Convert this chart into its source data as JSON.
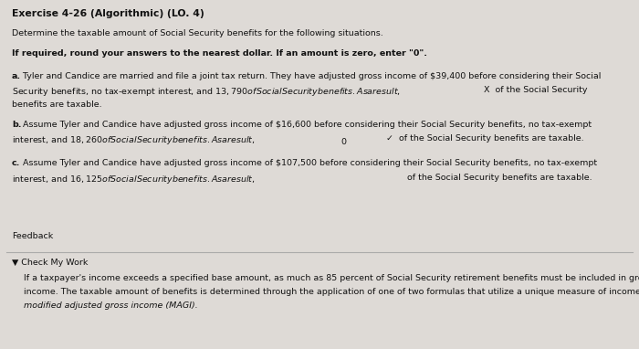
{
  "title": "Exercise 4-26 (Algorithmic) (LO. 4)",
  "subtitle": "Determine the taxable amount of Social Security benefits for the following situations.",
  "instruction": "If required, round your answers to the nearest dollar. If an amount is zero, enter \"0\".",
  "a_label": "a.",
  "a_line1": " Tyler and Candice are married and file a joint tax return. They have adjusted gross income of $39,400 before considering their Social",
  "a_line2": "Security benefits, no tax-exempt interest, and $13,790 of Social Security benefits. As a result, $",
  "a_after_box": " X  of the Social Security",
  "a_line3": "benefits are taxable.",
  "b_label": "b.",
  "b_line1": " Assume Tyler and Candice have adjusted gross income of $16,600 before considering their Social Security benefits, no tax-exempt",
  "b_line2": "interest, and $18,260 of Social Security benefits. As a result, $",
  "b_box_val": "0",
  "b_after_box": " ✓  of the Social Security benefits are taxable.",
  "c_label": "c.",
  "c_line1": " Assume Tyler and Candice have adjusted gross income of $107,500 before considering their Social Security benefits, no tax-exempt",
  "c_line2": "interest, and $16,125 of Social Security benefits. As a result, $",
  "c_after_box": " of the Social Security benefits are taxable.",
  "feedback_header": "Feedback",
  "check_label": "▼ Check My Work",
  "fb1": "If a taxpayer's income exceeds a specified base amount, as much as 85 percent of Social Security retirement benefits must be included in gross",
  "fb2": "income. The taxable amount of benefits is determined through the application of one of two formulas that utilize a unique measure of income—",
  "fb3": "modified adjusted gross income (MAGI).",
  "bg_main": "#dedad6",
  "bg_upper": "#e8e5e1",
  "bg_feedback_header": "#c8c5c1",
  "bg_feedback_body": "#d4d0cc",
  "box_a_color": "#c8d8f0",
  "box_a_edge": "#5588bb",
  "box_bc_color": "#f5f5f5",
  "box_bc_edge": "#999999",
  "text_color": "#111111",
  "line_color": "#aaaaaa",
  "fs_title": 7.8,
  "fs_body": 6.8,
  "fs_bold": 6.8
}
